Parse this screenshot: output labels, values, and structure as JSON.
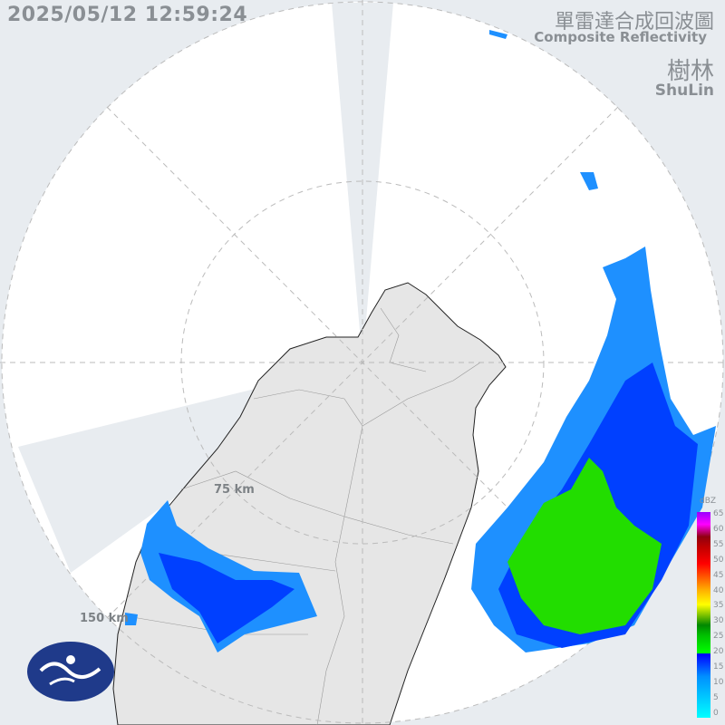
{
  "header": {
    "timestamp": "2025/05/12 12:59:24",
    "title_zh": "單雷達合成回波圖",
    "title_en": "Composite Reflectivity",
    "site_zh": "樹林",
    "site_en": "ShuLin"
  },
  "map": {
    "range_rings": [
      "75 km",
      "150 km"
    ]
  },
  "legend": {
    "unit": "dBZ",
    "ticks": [
      "65",
      "60",
      "55",
      "50",
      "45",
      "40",
      "35",
      "30",
      "25",
      "20",
      "15",
      "10",
      "5",
      "0"
    ]
  },
  "colors": {
    "background": "#e8ecf0",
    "radar_area": "#ffffff",
    "land": "#e6e6e6",
    "echo_light": "#1e90ff",
    "echo_blue": "#0040ff",
    "echo_green": "#22dd00",
    "logo": "#1f3a8a"
  },
  "logo": {
    "name": "cwa-logo-icon"
  }
}
